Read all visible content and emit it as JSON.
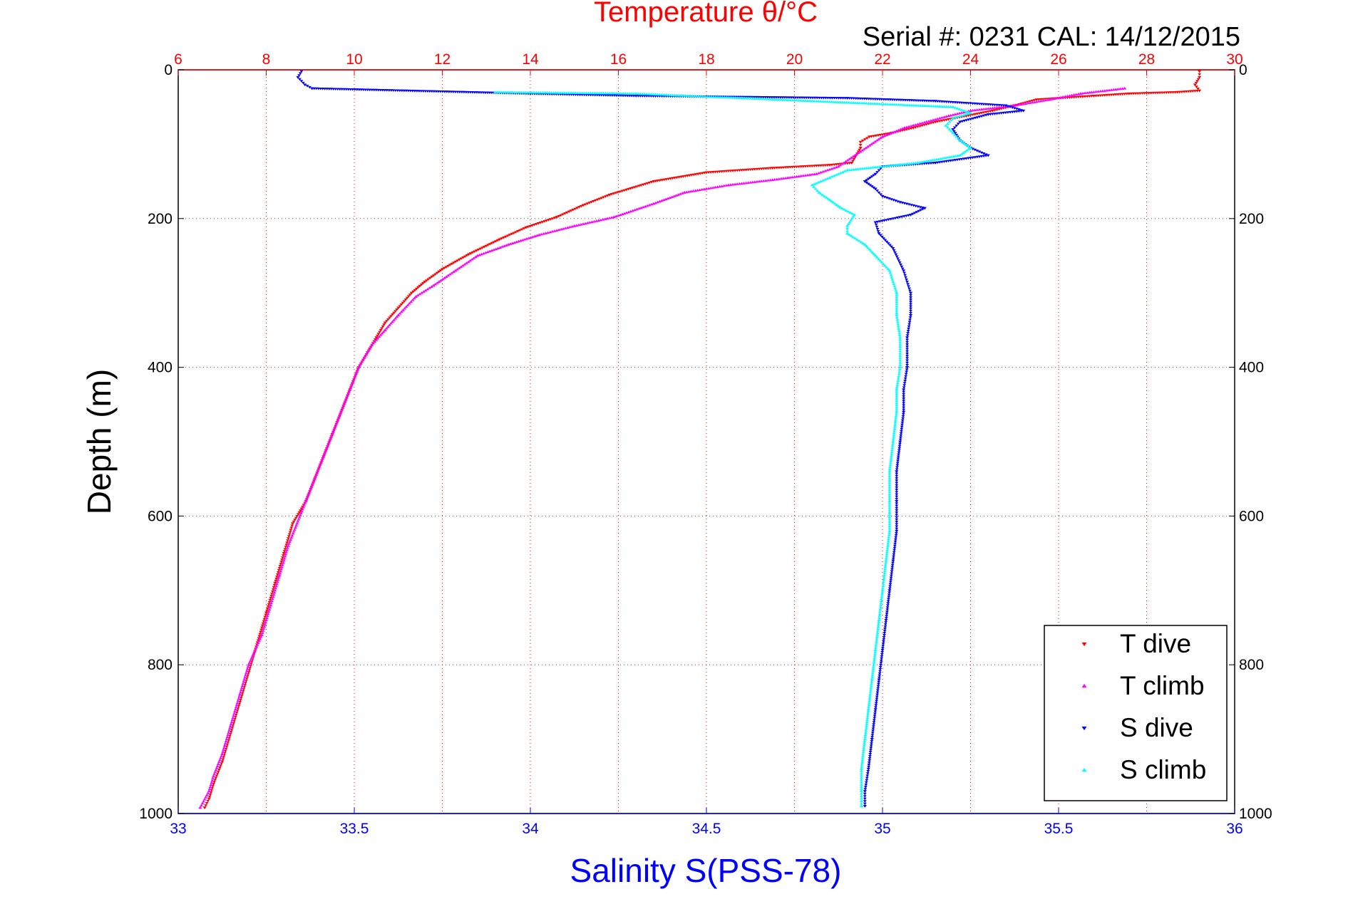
{
  "chart_data": {
    "type": "scatter",
    "title": "Temperature θ/°C",
    "annotation": "Serial #: 0231  CAL: 14/12/2015",
    "ylabel": "Depth (m)",
    "xlabel_bottom": "Salinity S(PSS-78)",
    "x_bottom": {
      "range": [
        33,
        36
      ],
      "ticks": [
        33,
        33.5,
        34,
        34.5,
        35,
        35.5,
        36
      ],
      "tick_labels": [
        "33",
        "33.5",
        "34",
        "34.5",
        "35",
        "35.5",
        "36"
      ],
      "color": "#0000ff"
    },
    "x_top": {
      "range": [
        6,
        30
      ],
      "ticks": [
        6,
        8,
        10,
        12,
        14,
        16,
        18,
        20,
        22,
        24,
        26,
        28,
        30
      ],
      "tick_labels": [
        "6",
        "8",
        "10",
        "12",
        "14",
        "16",
        "18",
        "20",
        "22",
        "24",
        "26",
        "28",
        "30"
      ],
      "color": "#ff0000"
    },
    "y": {
      "range": [
        0,
        1000
      ],
      "reversed": true,
      "ticks": [
        0,
        200,
        400,
        600,
        800,
        1000
      ],
      "tick_labels": [
        "0",
        "200",
        "400",
        "600",
        "800",
        "1000"
      ]
    },
    "grid": true,
    "legend_position": "bottom-right",
    "series": [
      {
        "name": "T dive",
        "axis": "top",
        "color": "#ff0000",
        "marker": "triangle-down",
        "points": [
          [
            29.2,
            2
          ],
          [
            29.2,
            10
          ],
          [
            29.1,
            20
          ],
          [
            29.2,
            28
          ],
          [
            28.7,
            30
          ],
          [
            27.6,
            32
          ],
          [
            26.8,
            35
          ],
          [
            25.5,
            40
          ],
          [
            25.0,
            48
          ],
          [
            24.5,
            55
          ],
          [
            23.9,
            62
          ],
          [
            23.2,
            70
          ],
          [
            22.7,
            78
          ],
          [
            22.2,
            85
          ],
          [
            21.7,
            90
          ],
          [
            21.5,
            97
          ],
          [
            21.5,
            105
          ],
          [
            21.4,
            115
          ],
          [
            21.3,
            125
          ],
          [
            20.8,
            128
          ],
          [
            19.5,
            132
          ],
          [
            18.0,
            138
          ],
          [
            16.8,
            150
          ],
          [
            15.8,
            168
          ],
          [
            15.2,
            182
          ],
          [
            14.6,
            198
          ],
          [
            13.9,
            212
          ],
          [
            13.3,
            228
          ],
          [
            12.6,
            248
          ],
          [
            12.0,
            268
          ],
          [
            11.6,
            285
          ],
          [
            11.3,
            300
          ],
          [
            11.0,
            320
          ],
          [
            10.7,
            340
          ],
          [
            10.5,
            360
          ],
          [
            10.3,
            380
          ],
          [
            10.1,
            400
          ],
          [
            9.9,
            430
          ],
          [
            9.7,
            460
          ],
          [
            9.5,
            490
          ],
          [
            9.3,
            520
          ],
          [
            9.1,
            550
          ],
          [
            8.9,
            580
          ],
          [
            8.6,
            610
          ],
          [
            8.4,
            650
          ],
          [
            8.2,
            690
          ],
          [
            8.0,
            730
          ],
          [
            7.8,
            770
          ],
          [
            7.6,
            810
          ],
          [
            7.4,
            850
          ],
          [
            7.2,
            890
          ],
          [
            7.0,
            930
          ],
          [
            6.8,
            960
          ],
          [
            6.7,
            980
          ],
          [
            6.6,
            992
          ]
        ]
      },
      {
        "name": "T climb",
        "axis": "top",
        "color": "#ff00ff",
        "marker": "triangle-up",
        "points": [
          [
            27.5,
            25
          ],
          [
            26.5,
            32
          ],
          [
            25.8,
            40
          ],
          [
            25.0,
            48
          ],
          [
            24.0,
            55
          ],
          [
            23.5,
            62
          ],
          [
            23.0,
            70
          ],
          [
            22.5,
            78
          ],
          [
            22.0,
            90
          ],
          [
            21.0,
            130
          ],
          [
            20.5,
            140
          ],
          [
            19.5,
            148
          ],
          [
            18.5,
            155
          ],
          [
            17.5,
            165
          ],
          [
            16.8,
            180
          ],
          [
            15.9,
            198
          ],
          [
            15.0,
            210
          ],
          [
            14.2,
            222
          ],
          [
            13.5,
            235
          ],
          [
            12.8,
            250
          ],
          [
            12.3,
            270
          ],
          [
            11.8,
            290
          ],
          [
            11.4,
            305
          ],
          [
            11.0,
            330
          ],
          [
            10.7,
            350
          ],
          [
            10.4,
            370
          ],
          [
            10.1,
            400
          ],
          [
            9.9,
            430
          ],
          [
            9.7,
            460
          ],
          [
            9.5,
            490
          ],
          [
            9.3,
            520
          ],
          [
            9.1,
            550
          ],
          [
            8.9,
            580
          ],
          [
            8.7,
            610
          ],
          [
            8.5,
            640
          ],
          [
            8.3,
            680
          ],
          [
            8.1,
            720
          ],
          [
            7.9,
            760
          ],
          [
            7.6,
            800
          ],
          [
            7.4,
            840
          ],
          [
            7.2,
            880
          ],
          [
            7.0,
            920
          ],
          [
            6.8,
            950
          ],
          [
            6.7,
            970
          ],
          [
            6.5,
            992
          ]
        ]
      },
      {
        "name": "S dive",
        "axis": "bottom",
        "color": "#0000ff",
        "marker": "triangle-down",
        "points": [
          [
            33.35,
            2
          ],
          [
            33.34,
            10
          ],
          [
            33.36,
            20
          ],
          [
            33.38,
            25
          ],
          [
            34.0,
            32
          ],
          [
            34.3,
            35
          ],
          [
            34.9,
            38
          ],
          [
            35.15,
            42
          ],
          [
            35.35,
            48
          ],
          [
            35.4,
            55
          ],
          [
            35.3,
            60
          ],
          [
            35.22,
            70
          ],
          [
            35.2,
            80
          ],
          [
            35.22,
            95
          ],
          [
            35.25,
            105
          ],
          [
            35.3,
            115
          ],
          [
            35.15,
            125
          ],
          [
            35.0,
            130
          ],
          [
            34.98,
            140
          ],
          [
            34.95,
            150
          ],
          [
            34.98,
            160
          ],
          [
            35.0,
            170
          ],
          [
            35.05,
            178
          ],
          [
            35.12,
            186
          ],
          [
            35.08,
            195
          ],
          [
            34.98,
            205
          ],
          [
            34.99,
            220
          ],
          [
            35.03,
            240
          ],
          [
            35.06,
            270
          ],
          [
            35.08,
            300
          ],
          [
            35.08,
            330
          ],
          [
            35.07,
            360
          ],
          [
            35.07,
            400
          ],
          [
            35.06,
            430
          ],
          [
            35.06,
            460
          ],
          [
            35.05,
            500
          ],
          [
            35.04,
            540
          ],
          [
            35.04,
            580
          ],
          [
            35.04,
            620
          ],
          [
            35.03,
            660
          ],
          [
            35.02,
            700
          ],
          [
            35.01,
            740
          ],
          [
            35.0,
            780
          ],
          [
            34.99,
            820
          ],
          [
            34.98,
            860
          ],
          [
            34.97,
            900
          ],
          [
            34.96,
            940
          ],
          [
            34.95,
            970
          ],
          [
            34.95,
            990
          ]
        ]
      },
      {
        "name": "S climb",
        "axis": "bottom",
        "color": "#00ffff",
        "marker": "triangle-up",
        "points": [
          [
            33.9,
            30
          ],
          [
            34.3,
            32
          ],
          [
            34.6,
            38
          ],
          [
            34.8,
            42
          ],
          [
            35.2,
            50
          ],
          [
            35.25,
            58
          ],
          [
            35.2,
            65
          ],
          [
            35.18,
            75
          ],
          [
            35.2,
            85
          ],
          [
            35.22,
            95
          ],
          [
            35.25,
            105
          ],
          [
            35.22,
            115
          ],
          [
            35.1,
            125
          ],
          [
            34.9,
            135
          ],
          [
            34.85,
            145
          ],
          [
            34.8,
            155
          ],
          [
            34.82,
            165
          ],
          [
            34.85,
            175
          ],
          [
            34.88,
            185
          ],
          [
            34.92,
            195
          ],
          [
            34.9,
            210
          ],
          [
            34.9,
            220
          ],
          [
            34.95,
            235
          ],
          [
            34.98,
            250
          ],
          [
            35.02,
            270
          ],
          [
            35.04,
            300
          ],
          [
            35.04,
            330
          ],
          [
            35.05,
            360
          ],
          [
            35.05,
            400
          ],
          [
            35.04,
            430
          ],
          [
            35.04,
            460
          ],
          [
            35.03,
            500
          ],
          [
            35.02,
            540
          ],
          [
            35.02,
            580
          ],
          [
            35.02,
            620
          ],
          [
            35.01,
            660
          ],
          [
            35.0,
            700
          ],
          [
            34.99,
            740
          ],
          [
            34.98,
            780
          ],
          [
            34.97,
            820
          ],
          [
            34.96,
            860
          ],
          [
            34.95,
            900
          ],
          [
            34.94,
            940
          ],
          [
            34.94,
            970
          ],
          [
            34.94,
            990
          ]
        ]
      }
    ]
  }
}
